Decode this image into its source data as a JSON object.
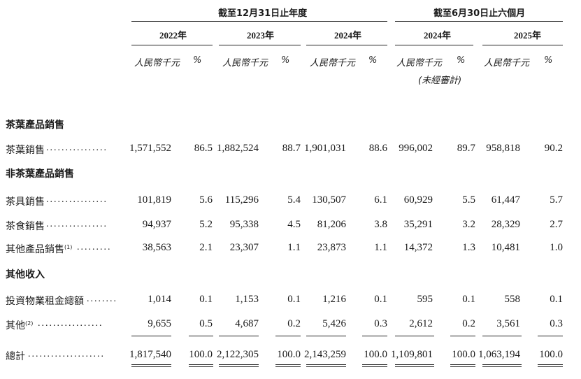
{
  "header": {
    "group1_title": "截至12月31日止年度",
    "group2_title": "截至6月30日止六個月",
    "years": [
      "2022年",
      "2023年",
      "2024年",
      "2024年",
      "2025年"
    ],
    "unit_rmb": "人民幣千元",
    "unit_pct": "%",
    "unaudited": "(未經審計)"
  },
  "sections": {
    "tea": "茶葉產品銷售",
    "nontea": "非茶葉產品銷售",
    "other": "其他收入"
  },
  "rows": {
    "tea_sales": {
      "label": "茶葉銷售",
      "sup": "",
      "values": [
        "1,571,552",
        "86.5",
        "1,882,524",
        "88.7",
        "1,901,031",
        "88.6",
        "996,002",
        "89.7",
        "958,818",
        "90.2"
      ]
    },
    "teaware": {
      "label": "茶具銷售",
      "sup": "",
      "values": [
        "101,819",
        "5.6",
        "115,296",
        "5.4",
        "130,507",
        "6.1",
        "60,929",
        "5.5",
        "61,447",
        "5.7"
      ]
    },
    "teafood": {
      "label": "茶食銷售",
      "sup": "",
      "values": [
        "94,937",
        "5.2",
        "95,338",
        "4.5",
        "81,206",
        "3.8",
        "35,291",
        "3.2",
        "28,329",
        "2.7"
      ]
    },
    "other_products": {
      "label": "其他產品銷售",
      "sup": "(1)",
      "values": [
        "38,563",
        "2.1",
        "23,307",
        "1.1",
        "23,873",
        "1.1",
        "14,372",
        "1.3",
        "10,481",
        "1.0"
      ]
    },
    "rental": {
      "label": "投資物業租金總額",
      "sup": "",
      "values": [
        "1,014",
        "0.1",
        "1,153",
        "0.1",
        "1,216",
        "0.1",
        "595",
        "0.1",
        "558",
        "0.1"
      ]
    },
    "others": {
      "label": "其他",
      "sup": "(2)",
      "values": [
        "9,655",
        "0.5",
        "4,687",
        "0.2",
        "5,426",
        "0.3",
        "2,612",
        "0.2",
        "3,561",
        "0.3"
      ]
    },
    "total": {
      "label": "總計",
      "sup": "",
      "values": [
        "1,817,540",
        "100.0",
        "2,122,305",
        "100.0",
        "2,143,259",
        "100.0",
        "1,109,801",
        "100.0",
        "1,063,194",
        "100.0"
      ]
    }
  }
}
